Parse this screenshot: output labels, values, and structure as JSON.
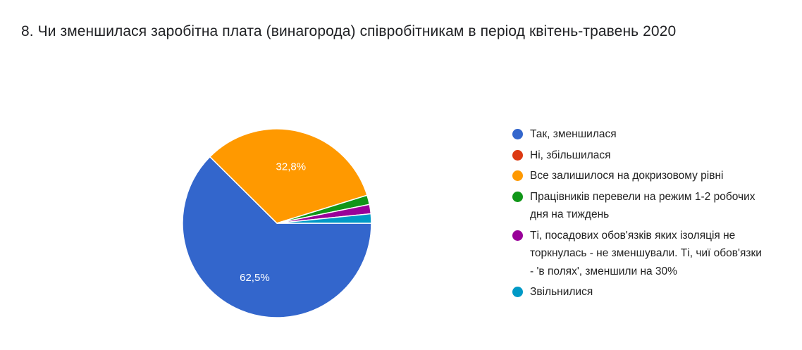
{
  "question": {
    "title": "8. Чи зменшилася заробітна плата (винагорода) співробітникам в період квітень-травень 2020"
  },
  "chart_data": {
    "type": "pie",
    "categories": [
      "Так, зменшилася",
      "Ні, збільшилася",
      "Все залишилося на докризовому рівні",
      "Працівників перевели на режим 1-2 робочих дня на тиждень",
      "Ті, посадових обов'язків яких ізоляція не торкнулась - не зменшували. Ті, чиї обов'язки - 'в полях', зменшили на 30%",
      "Звільнилися"
    ],
    "values": [
      62.5,
      0,
      32.8,
      1.6,
      1.6,
      1.6
    ],
    "data_labels": [
      "62,5%",
      "",
      "32,8%",
      "",
      "",
      ""
    ],
    "colors": [
      "#3366cc",
      "#dc3912",
      "#ff9900",
      "#109618",
      "#990099",
      "#0099c6"
    ],
    "legend_position": "right",
    "start_angle_deg": 90,
    "direction": "clockwise"
  }
}
